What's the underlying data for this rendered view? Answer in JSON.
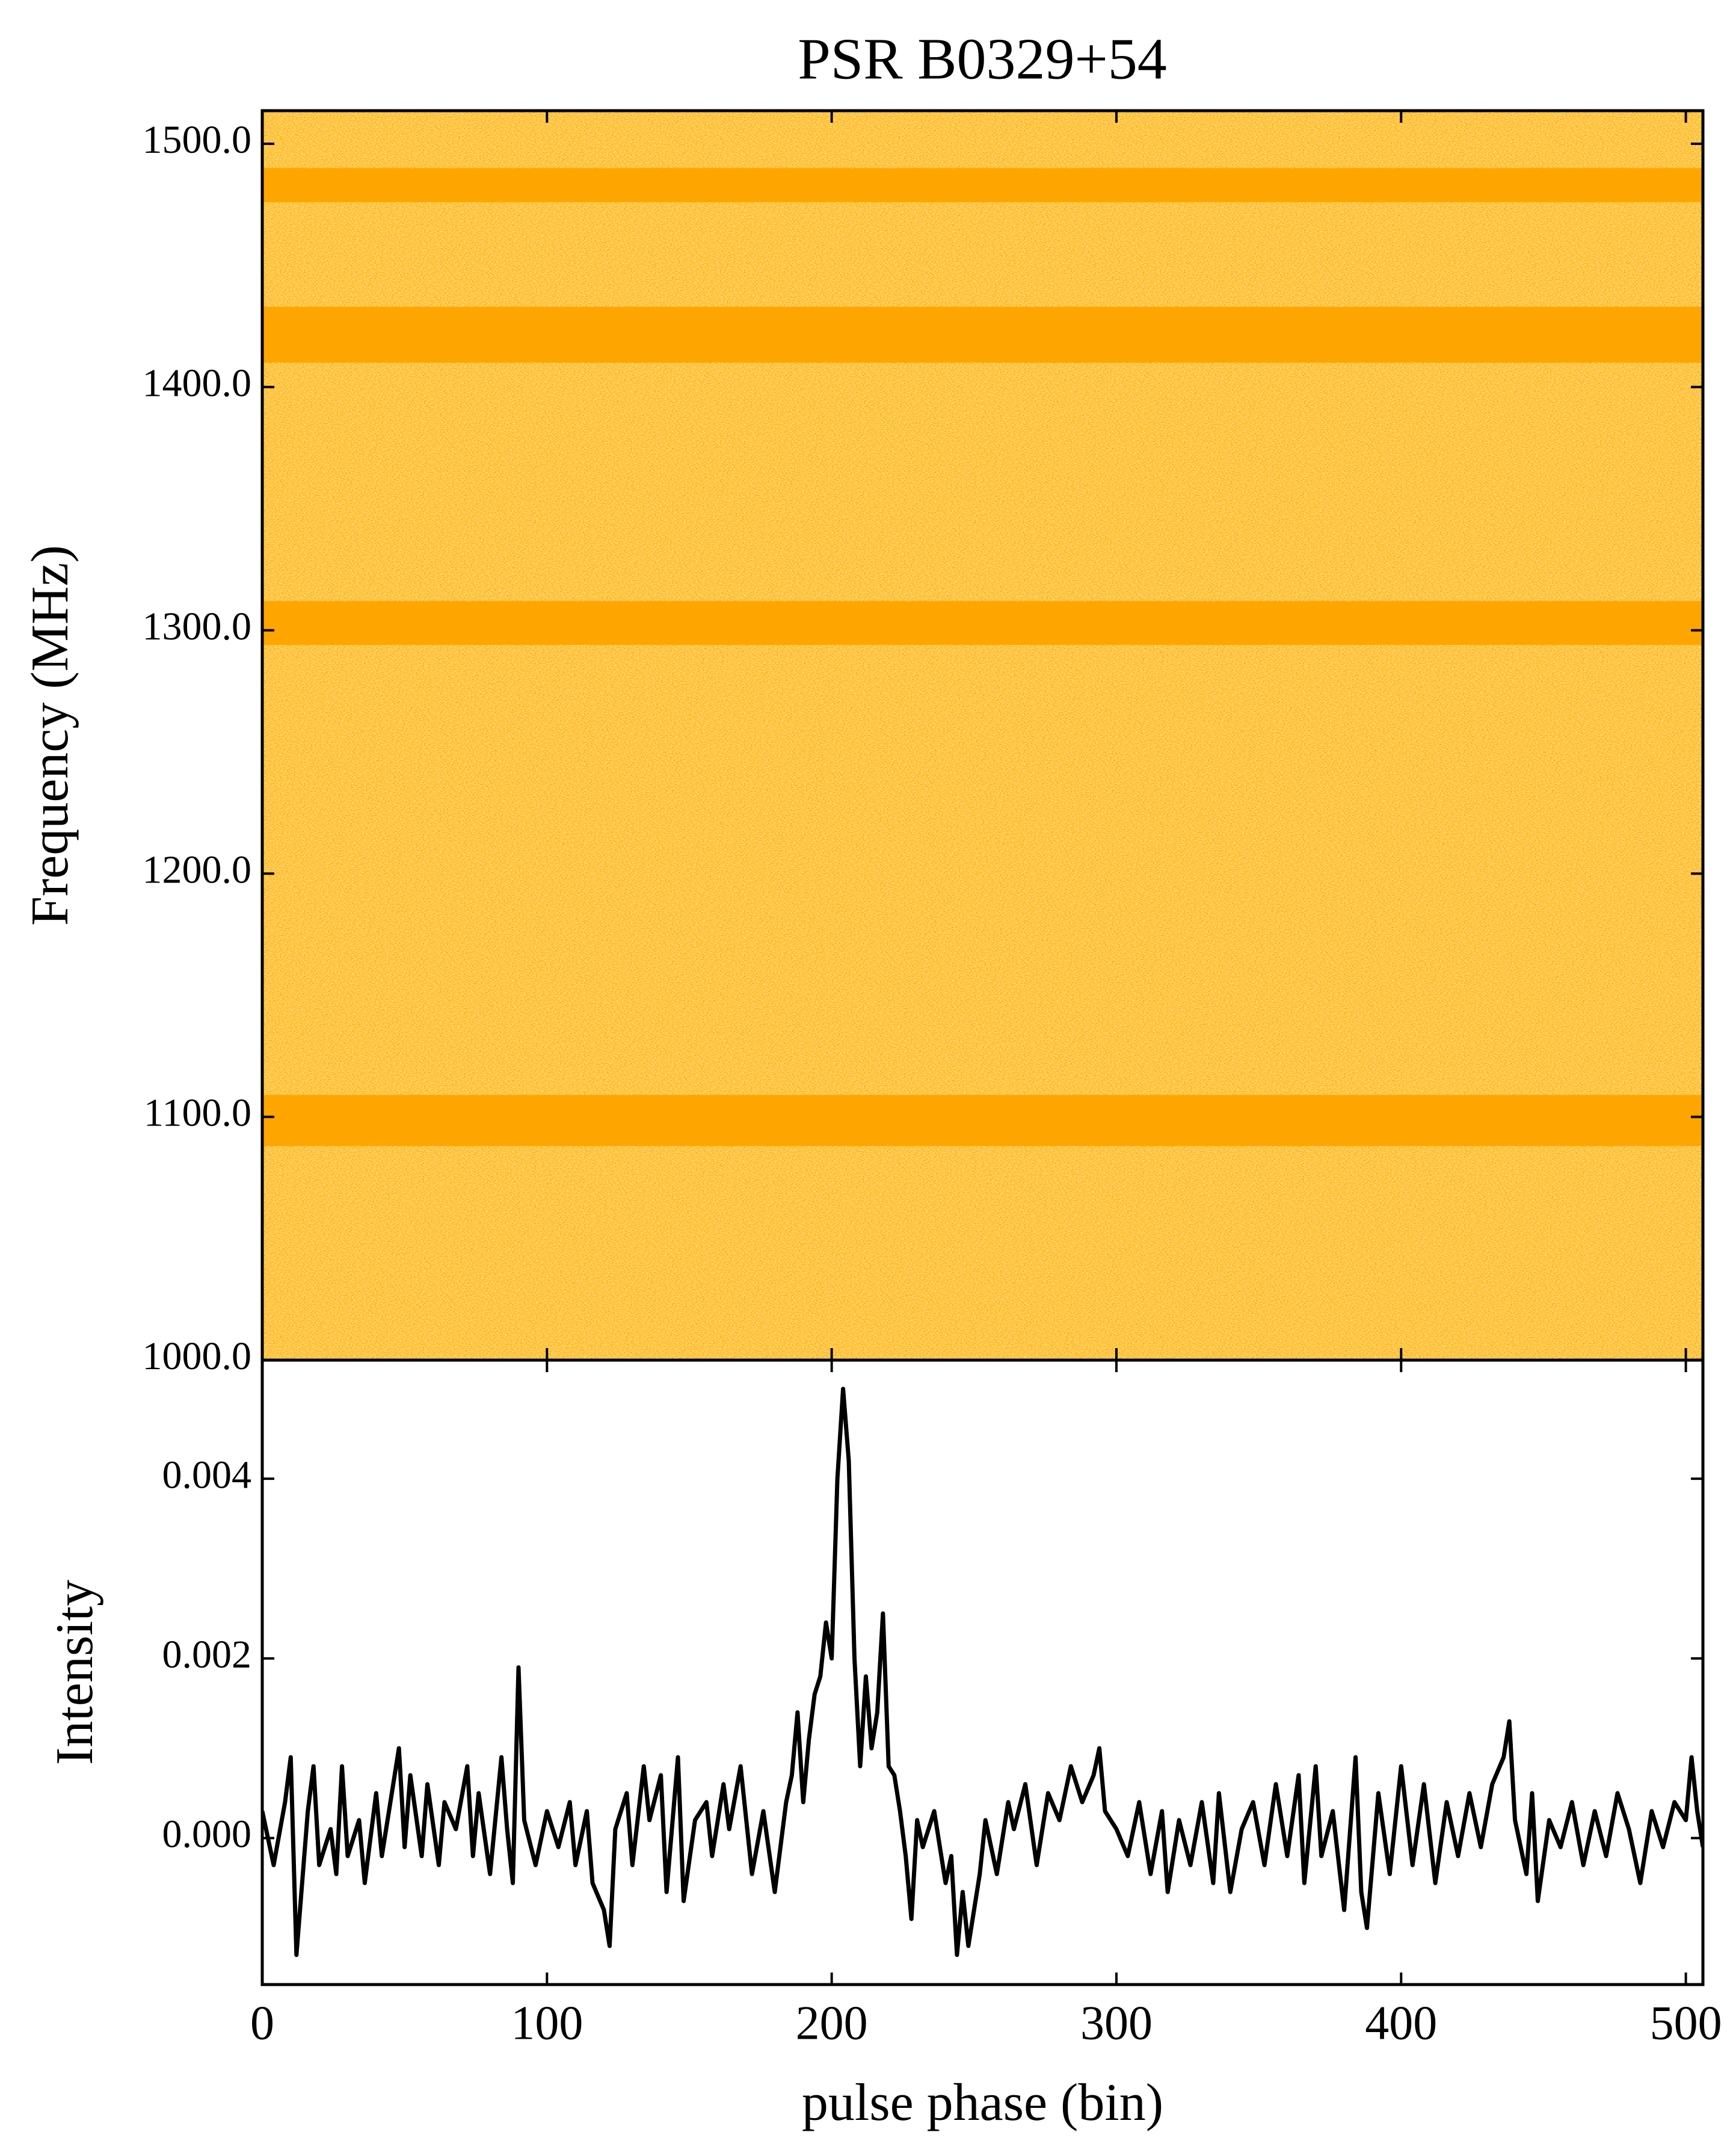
{
  "chart_data": [
    {
      "type": "heatmap",
      "title": "PSR B0329+54",
      "ylabel": "Frequency (MHz)",
      "xlim": [
        0,
        506
      ],
      "xticks": [
        0,
        100,
        200,
        300,
        400,
        500
      ],
      "ylim": [
        1000,
        1513.6
      ],
      "yticks": [
        {
          "value": 1000,
          "label": "1000.0"
        },
        {
          "value": 1100,
          "label": "1100.0"
        },
        {
          "value": 1200,
          "label": "1200.0"
        },
        {
          "value": 1300,
          "label": "1300.0"
        },
        {
          "value": 1400,
          "label": "1400.0"
        },
        {
          "value": 1500,
          "label": "1500.0"
        }
      ],
      "masked_bands": [
        [
          1476,
          1490
        ],
        [
          1410,
          1433
        ],
        [
          1294,
          1312
        ],
        [
          1088,
          1109
        ]
      ],
      "color": "#ffa500"
    },
    {
      "type": "line",
      "ylabel": "Intensity",
      "xlabel": "pulse phase (bin)",
      "xlim": [
        0,
        506
      ],
      "xticks": [
        0,
        100,
        200,
        300,
        400,
        500
      ],
      "ylim": [
        -0.00163,
        0.00532
      ],
      "yticks": [
        {
          "value": 0,
          "label": "0.000"
        },
        {
          "value": 0.002,
          "label": "0.002"
        },
        {
          "value": 0.004,
          "label": "0.004"
        }
      ],
      "x": [
        0,
        4,
        8,
        10,
        12,
        16,
        18,
        20,
        24,
        26,
        28,
        30,
        34,
        36,
        40,
        42,
        46,
        48,
        50,
        52,
        56,
        58,
        62,
        64,
        68,
        72,
        74,
        76,
        80,
        84,
        86,
        88,
        90,
        92,
        96,
        100,
        104,
        108,
        110,
        114,
        116,
        120,
        122,
        124,
        128,
        130,
        134,
        136,
        140,
        142,
        146,
        148,
        152,
        156,
        158,
        162,
        164,
        168,
        172,
        176,
        180,
        184,
        186,
        188,
        190,
        192,
        194,
        196,
        198,
        200,
        202,
        204,
        206,
        208,
        210,
        212,
        214,
        216,
        218,
        220,
        222,
        224,
        226,
        228,
        230,
        232,
        236,
        240,
        242,
        244,
        246,
        248,
        252,
        254,
        258,
        262,
        264,
        268,
        272,
        276,
        280,
        284,
        288,
        292,
        294,
        296,
        300,
        304,
        308,
        312,
        316,
        318,
        322,
        326,
        330,
        334,
        336,
        340,
        344,
        348,
        352,
        356,
        360,
        364,
        366,
        370,
        372,
        376,
        380,
        384,
        386,
        388,
        392,
        396,
        400,
        404,
        408,
        412,
        416,
        420,
        424,
        428,
        432,
        436,
        438,
        440,
        444,
        446,
        448,
        452,
        456,
        460,
        464,
        468,
        472,
        476,
        480,
        484,
        488,
        492,
        496,
        500,
        502,
        504,
        506
      ],
      "series": [
        {
          "color": "#000000",
          "values": [
            0.0003,
            -0.0003,
            0.0004,
            0.0009,
            -0.0013,
            0.0003,
            0.0008,
            -0.0003,
            0.0001,
            -0.0004,
            0.0008,
            -0.0002,
            0.0002,
            -0.0005,
            0.0005,
            -0.0002,
            0.0006,
            0.001,
            -0.0001,
            0.0007,
            -0.0002,
            0.0006,
            -0.0003,
            0.0004,
            0.0001,
            0.0008,
            -0.0002,
            0.0005,
            -0.0004,
            0.0009,
            0.0001,
            -0.0005,
            0.0019,
            0.0002,
            -0.0003,
            0.0003,
            -0.0001,
            0.0004,
            -0.0003,
            0.0003,
            -0.0005,
            -0.0008,
            -0.0012,
            0.0001,
            0.0005,
            -0.0003,
            0.0008,
            0.0002,
            0.0007,
            -0.0006,
            0.0009,
            -0.0007,
            0.0002,
            0.0004,
            -0.0002,
            0.0006,
            0.0001,
            0.0008,
            -0.0004,
            0.0003,
            -0.0006,
            0.0004,
            0.0007,
            0.0014,
            0.0004,
            0.0011,
            0.0016,
            0.0018,
            0.0024,
            0.002,
            0.004,
            0.005,
            0.0042,
            0.002,
            0.0008,
            0.0018,
            0.001,
            0.0014,
            0.0025,
            0.0008,
            0.0007,
            0.0003,
            -0.0002,
            -0.0009,
            0.0002,
            -0.0001,
            0.0003,
            -0.0005,
            -0.0002,
            -0.0013,
            -0.0006,
            -0.0012,
            -0.0004,
            0.0002,
            -0.0004,
            0.0004,
            0.0001,
            0.0006,
            -0.0003,
            0.0005,
            0.0002,
            0.0008,
            0.0004,
            0.0007,
            0.001,
            0.0003,
            0.0001,
            -0.0002,
            0.0004,
            -0.0004,
            0.0003,
            -0.0006,
            0.0002,
            -0.0003,
            0.0004,
            -0.0005,
            0.0005,
            -0.0006,
            0.0001,
            0.0004,
            -0.0003,
            0.0006,
            -0.0002,
            0.0007,
            -0.0005,
            0.0008,
            -0.0002,
            0.0003,
            -0.0008,
            0.0009,
            -0.0006,
            -0.001,
            0.0005,
            -0.0004,
            0.0008,
            -0.0003,
            0.0006,
            -0.0005,
            0.0004,
            -0.0002,
            0.0005,
            -0.0001,
            0.0006,
            0.0009,
            0.0013,
            0.0002,
            -0.0004,
            0.0005,
            -0.0007,
            0.0002,
            -0.0001,
            0.0004,
            -0.0003,
            0.0003,
            -0.0002,
            0.0005,
            0.0001,
            -0.0005,
            0.0003,
            -0.0001,
            0.0004,
            0.0002,
            0.0009,
            0.0003,
            -0.0001
          ]
        }
      ]
    }
  ]
}
